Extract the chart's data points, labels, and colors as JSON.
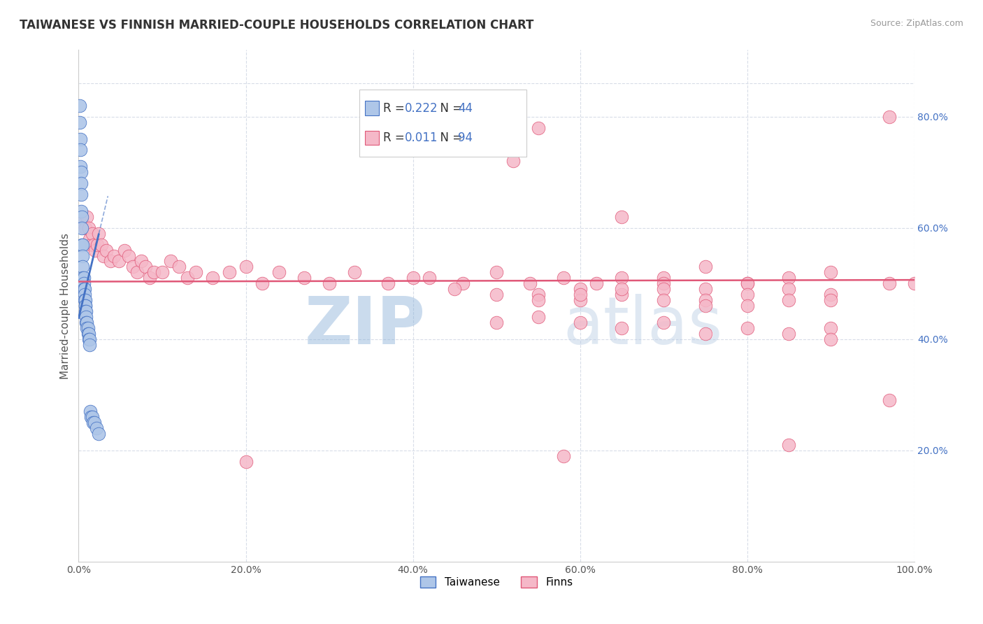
{
  "title": "TAIWANESE VS FINNISH MARRIED-COUPLE HOUSEHOLDS CORRELATION CHART",
  "source_text": "Source: ZipAtlas.com",
  "ylabel": "Married-couple Households",
  "xmin": 0.0,
  "xmax": 1.0,
  "ymin": 0.0,
  "ymax": 0.92,
  "xtick_labels": [
    "0.0%",
    "20.0%",
    "40.0%",
    "60.0%",
    "80.0%",
    "100.0%"
  ],
  "xtick_vals": [
    0.0,
    0.2,
    0.4,
    0.6,
    0.8,
    1.0
  ],
  "ytick_labels": [
    "20.0%",
    "40.0%",
    "60.0%",
    "80.0%"
  ],
  "ytick_vals": [
    0.2,
    0.4,
    0.6,
    0.8
  ],
  "watermark_zip": "ZIP",
  "watermark_atlas": "atlas",
  "legend_R_taiwanese": "0.222",
  "legend_N_taiwanese": "44",
  "legend_R_finns": "0.011",
  "legend_N_finns": "94",
  "taiwanese_color": "#aec6e8",
  "finnish_color": "#f5b8c8",
  "taiwanese_line_color": "#4472c4",
  "finnish_line_color": "#e05878",
  "grid_color": "#d8dde8",
  "taiwanese_x": [
    0.001,
    0.001,
    0.002,
    0.002,
    0.002,
    0.003,
    0.003,
    0.003,
    0.003,
    0.004,
    0.004,
    0.004,
    0.005,
    0.005,
    0.005,
    0.005,
    0.006,
    0.006,
    0.006,
    0.007,
    0.007,
    0.007,
    0.008,
    0.008,
    0.008,
    0.008,
    0.009,
    0.009,
    0.009,
    0.01,
    0.01,
    0.011,
    0.011,
    0.012,
    0.012,
    0.013,
    0.013,
    0.014,
    0.015,
    0.016,
    0.017,
    0.019,
    0.021,
    0.024
  ],
  "taiwanese_y": [
    0.82,
    0.79,
    0.76,
    0.74,
    0.71,
    0.7,
    0.68,
    0.66,
    0.63,
    0.62,
    0.6,
    0.57,
    0.57,
    0.55,
    0.53,
    0.51,
    0.51,
    0.5,
    0.49,
    0.49,
    0.48,
    0.47,
    0.47,
    0.46,
    0.46,
    0.45,
    0.45,
    0.44,
    0.43,
    0.43,
    0.42,
    0.42,
    0.41,
    0.41,
    0.4,
    0.4,
    0.39,
    0.27,
    0.26,
    0.26,
    0.25,
    0.25,
    0.24,
    0.23
  ],
  "finns_x": [
    0.005,
    0.008,
    0.01,
    0.012,
    0.013,
    0.015,
    0.016,
    0.018,
    0.02,
    0.022,
    0.024,
    0.027,
    0.03,
    0.033,
    0.038,
    0.042,
    0.048,
    0.055,
    0.06,
    0.065,
    0.07,
    0.075,
    0.08,
    0.085,
    0.09,
    0.1,
    0.11,
    0.12,
    0.13,
    0.14,
    0.16,
    0.18,
    0.2,
    0.22,
    0.24,
    0.27,
    0.3,
    0.33,
    0.37,
    0.42,
    0.46,
    0.5,
    0.54,
    0.58,
    0.62,
    0.52,
    0.65,
    0.55,
    0.7,
    0.75,
    0.8,
    0.85,
    0.9,
    0.97,
    0.55,
    0.6,
    0.65,
    0.7,
    0.75,
    0.8,
    0.85,
    0.9,
    0.97,
    0.6,
    0.65,
    0.7,
    0.75,
    0.8,
    0.85,
    0.9,
    0.4,
    0.45,
    0.5,
    0.55,
    0.6,
    0.65,
    0.7,
    0.75,
    0.8,
    0.85,
    0.9,
    0.5,
    0.55,
    0.6,
    0.65,
    0.7,
    0.75,
    0.8,
    0.85,
    0.9,
    0.97,
    1.0,
    0.2,
    0.58
  ],
  "finns_y": [
    0.61,
    0.6,
    0.62,
    0.6,
    0.58,
    0.57,
    0.59,
    0.57,
    0.56,
    0.57,
    0.59,
    0.57,
    0.55,
    0.56,
    0.54,
    0.55,
    0.54,
    0.56,
    0.55,
    0.53,
    0.52,
    0.54,
    0.53,
    0.51,
    0.52,
    0.52,
    0.54,
    0.53,
    0.51,
    0.52,
    0.51,
    0.52,
    0.53,
    0.5,
    0.52,
    0.51,
    0.5,
    0.52,
    0.5,
    0.51,
    0.5,
    0.52,
    0.5,
    0.51,
    0.5,
    0.72,
    0.62,
    0.78,
    0.51,
    0.53,
    0.5,
    0.51,
    0.52,
    0.8,
    0.48,
    0.49,
    0.51,
    0.5,
    0.49,
    0.5,
    0.49,
    0.48,
    0.5,
    0.47,
    0.48,
    0.49,
    0.47,
    0.48,
    0.21,
    0.47,
    0.51,
    0.49,
    0.48,
    0.47,
    0.48,
    0.49,
    0.47,
    0.46,
    0.46,
    0.47,
    0.42,
    0.43,
    0.44,
    0.43,
    0.42,
    0.43,
    0.41,
    0.42,
    0.41,
    0.4,
    0.29,
    0.5,
    0.18,
    0.19
  ]
}
